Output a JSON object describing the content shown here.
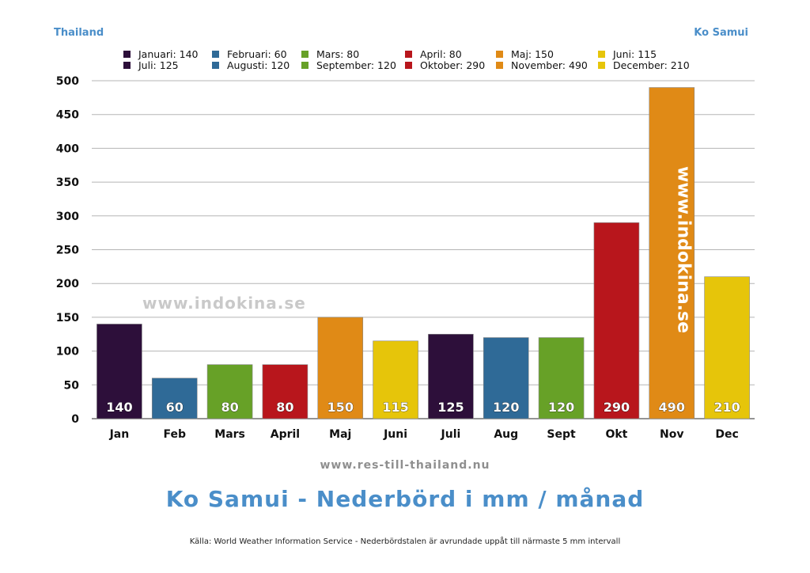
{
  "header": {
    "left": "Thailand",
    "right": "Ko Samui"
  },
  "watermarks": {
    "horizontal": "www.indokina.se",
    "vertical": "www.indokina.se"
  },
  "footer": {
    "url": "www.res-till-thailand.nu",
    "title": "Ko Samui - Nederbörd i mm / månad",
    "source": "Källa: World Weather Information Service - Nederbördstalen är avrundade uppåt till närmaste 5 mm intervall"
  },
  "chart_data": {
    "type": "bar",
    "title": "Ko Samui - Nederbörd i mm / månad",
    "categories": [
      "Jan",
      "Feb",
      "Mars",
      "April",
      "Maj",
      "Juni",
      "Juli",
      "Aug",
      "Sept",
      "Okt",
      "Nov",
      "Dec"
    ],
    "values": [
      140,
      60,
      80,
      80,
      150,
      115,
      125,
      120,
      120,
      290,
      490,
      210
    ],
    "colors": [
      "#2d0f3a",
      "#2f6a97",
      "#67a127",
      "#b8161c",
      "#e08a16",
      "#e6c50a",
      "#2d0f3a",
      "#2f6a97",
      "#67a127",
      "#b8161c",
      "#e08a16",
      "#e6c50a"
    ],
    "ylim": [
      0,
      500
    ],
    "yticks": [
      0,
      50,
      100,
      150,
      200,
      250,
      300,
      350,
      400,
      450,
      500
    ],
    "grid": true,
    "legend_position": "top",
    "legend": [
      "Januari: 140",
      "Februari: 60",
      "Mars: 80",
      "April: 80",
      "Maj: 150",
      "Juni: 115",
      "Juli: 125",
      "Augusti: 120",
      "September: 120",
      "Oktober: 290",
      "November: 490",
      "December: 210"
    ],
    "xlabel": "",
    "ylabel": ""
  }
}
